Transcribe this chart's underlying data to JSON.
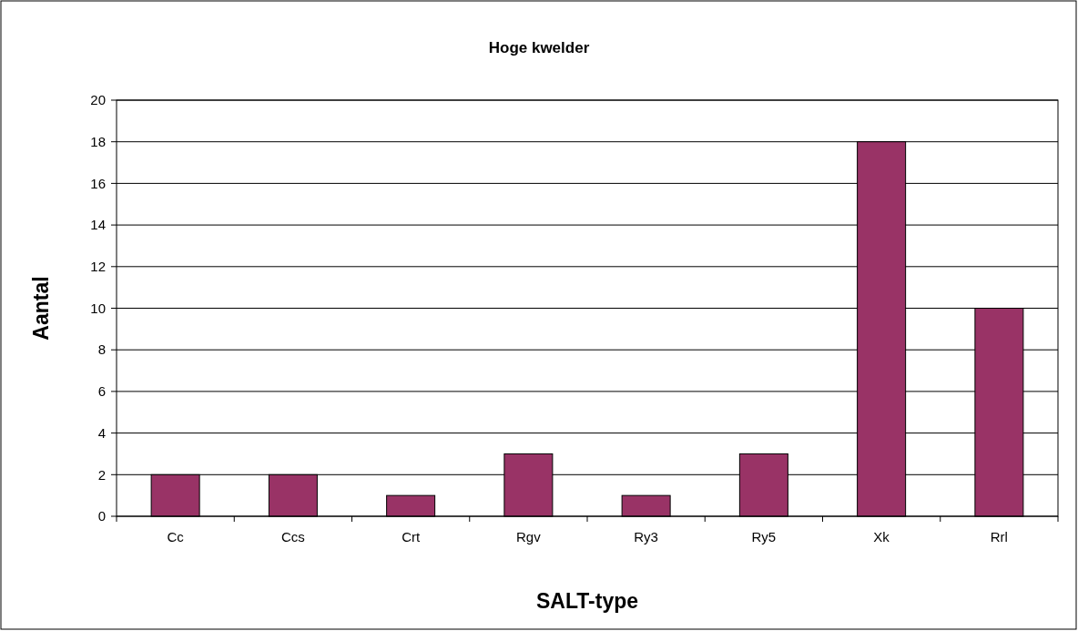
{
  "chart_data": {
    "type": "bar",
    "title": "Hoge kwelder",
    "xlabel": "SALT-type",
    "ylabel": "Aantal",
    "categories": [
      "Cc",
      "Ccs",
      "Crt",
      "Rgv",
      "Ry3",
      "Ry5",
      "Xk",
      "Rrl"
    ],
    "values": [
      2,
      2,
      1,
      3,
      1,
      3,
      18,
      10
    ],
    "color": "#993366",
    "ylim": [
      0,
      20
    ],
    "yticks": [
      0,
      2,
      4,
      6,
      8,
      10,
      12,
      14,
      16,
      18,
      20
    ],
    "grid": "y"
  }
}
